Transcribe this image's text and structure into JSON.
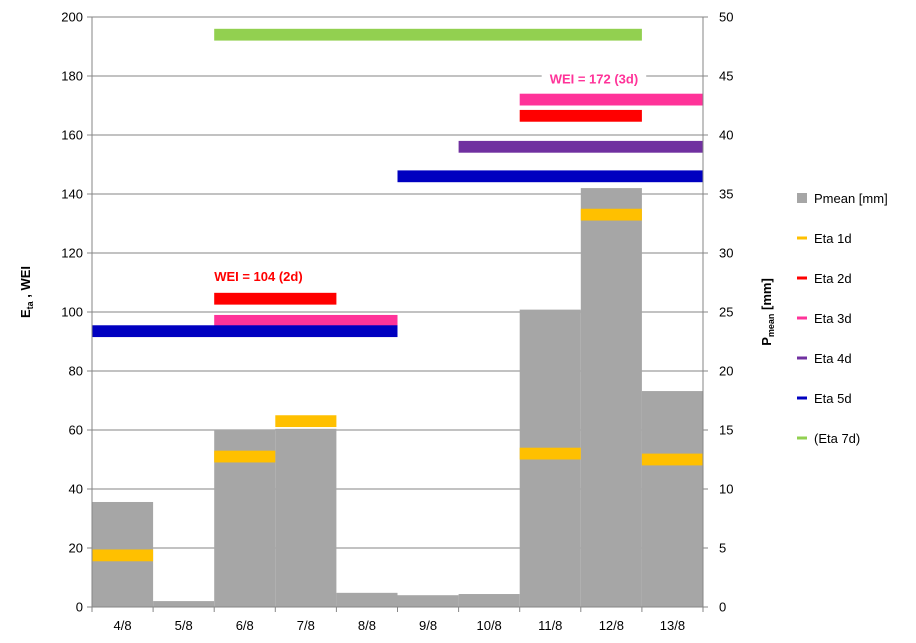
{
  "chart_data": {
    "type": "bar",
    "categories": [
      "4/8",
      "5/8",
      "6/8",
      "7/8",
      "8/8",
      "9/8",
      "10/8",
      "11/8",
      "12/8",
      "13/8"
    ],
    "y_left": {
      "label_main": "E",
      "label_sub": "ta",
      "label_rest": " , WEI",
      "lim": [
        0,
        200
      ],
      "ticks": [
        "0",
        "20",
        "40",
        "60",
        "80",
        "100",
        "120",
        "140",
        "160",
        "180",
        "200"
      ]
    },
    "y_right": {
      "label_main": "P",
      "label_sub": "mean",
      "label_rest": " [mm]",
      "lim": [
        0,
        50
      ],
      "ticks": [
        "0",
        "5",
        "10",
        "15",
        "20",
        "25",
        "30",
        "35",
        "40",
        "45",
        "50"
      ]
    },
    "grid": true,
    "legend_position": "right",
    "bars": {
      "name": "Pmean [mm]",
      "color": "#a6a6a6",
      "axis": "right",
      "values": [
        8.9,
        0.5,
        15.0,
        15.1,
        1.2,
        1.0,
        1.1,
        25.2,
        35.5,
        18.3
      ]
    },
    "segments": [
      {
        "name": "Eta 1d",
        "color": "#ffc000",
        "axis": "left",
        "thickness": 4,
        "items": [
          {
            "start": "4/8",
            "end": "4/8",
            "y": 17.5
          },
          {
            "start": "6/8",
            "end": "6/8",
            "y": 51
          },
          {
            "start": "7/8",
            "end": "7/8",
            "y": 63
          },
          {
            "start": "11/8",
            "end": "11/8",
            "y": 52
          },
          {
            "start": "12/8",
            "end": "12/8",
            "y": 133
          },
          {
            "start": "13/8",
            "end": "13/8",
            "y": 50
          }
        ]
      },
      {
        "name": "Eta 2d",
        "color": "#ff0000",
        "axis": "left",
        "thickness": 4,
        "items": [
          {
            "start": "6/8",
            "end": "7/8",
            "y": 104.5
          },
          {
            "start": "11/8",
            "end": "12/8",
            "y": 166.5
          }
        ]
      },
      {
        "name": "Eta 3d",
        "color": "#ff3399",
        "axis": "left",
        "thickness": 4,
        "items": [
          {
            "start": "6/8",
            "end": "8/8",
            "y": 97
          },
          {
            "start": "11/8",
            "end": "13/8",
            "y": 172
          }
        ]
      },
      {
        "name": "Eta 4d",
        "color": "#7030a0",
        "axis": "left",
        "thickness": 4,
        "items": [
          {
            "start": "10/8",
            "end": "13/8",
            "y": 156
          }
        ]
      },
      {
        "name": "Eta 5d",
        "color": "#0000c0",
        "axis": "left",
        "thickness": 4,
        "items": [
          {
            "start": "4/8",
            "end": "8/8",
            "y": 93.5
          },
          {
            "start": "9/8",
            "end": "13/8",
            "y": 146
          }
        ]
      },
      {
        "name": "(Eta 7d)",
        "color": "#92d050",
        "axis": "left",
        "thickness": 4,
        "items": [
          {
            "start": "6/8",
            "end": "12/8",
            "y": 194
          }
        ]
      }
    ],
    "annotations": [
      {
        "text": "WEI = 104 (2d)",
        "color": "#ff0000",
        "at_category": "6/8",
        "y": 112
      },
      {
        "text": "WEI = 172 (3d)",
        "color": "#ff3399",
        "at_category": "11/8",
        "y": 179
      }
    ],
    "legend": [
      {
        "name": "Pmean [mm]",
        "marker": "square",
        "color": "#a6a6a6"
      },
      {
        "name": "Eta 1d",
        "marker": "line",
        "color": "#ffc000"
      },
      {
        "name": "Eta 2d",
        "marker": "line",
        "color": "#ff0000"
      },
      {
        "name": "Eta 3d",
        "marker": "line",
        "color": "#ff3399"
      },
      {
        "name": "Eta 4d",
        "marker": "line",
        "color": "#7030a0"
      },
      {
        "name": "Eta 5d",
        "marker": "line",
        "color": "#0000c0"
      },
      {
        "name": "(Eta 7d)",
        "marker": "line",
        "color": "#92d050"
      }
    ]
  }
}
